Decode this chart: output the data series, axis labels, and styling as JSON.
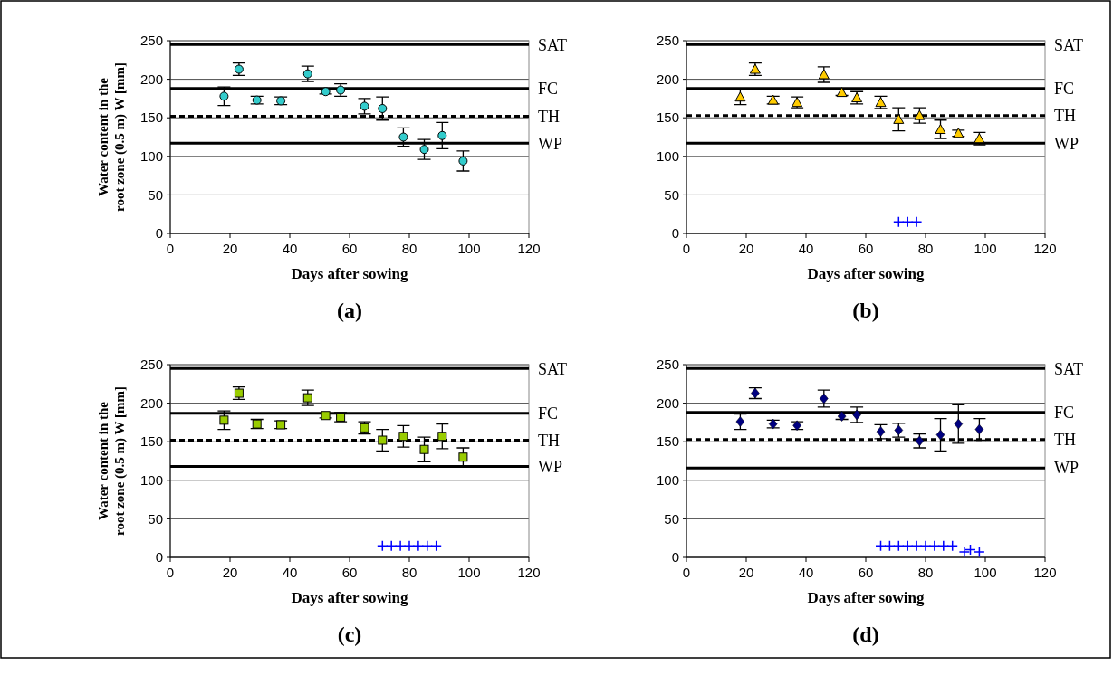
{
  "chart_data": [
    {
      "type": "scatter",
      "title": "(a)",
      "xlabel": "Days after sowing",
      "ylabel": "Water content in the root zone (0.5 m) W [mm]",
      "xlim": [
        0,
        120
      ],
      "xticks": [
        0,
        20,
        40,
        60,
        80,
        100,
        120
      ],
      "ylim": [
        0,
        250
      ],
      "yticks": [
        0,
        50,
        100,
        150,
        200,
        250
      ],
      "grid": "y",
      "ref_lines": [
        {
          "axis": "y",
          "value": 245,
          "label": "SAT",
          "line_style": "solid"
        },
        {
          "axis": "y",
          "value": 188,
          "label": "FC",
          "line_style": "solid"
        },
        {
          "axis": "y",
          "value": 152,
          "label": "TH",
          "line_style": "dashed"
        },
        {
          "axis": "y",
          "value": 117,
          "label": "WP",
          "line_style": "solid"
        }
      ],
      "series": [
        {
          "color": "#33cccc",
          "marker": "circle",
          "x": [
            18,
            23,
            29,
            37,
            46,
            52,
            57,
            65,
            71,
            78,
            85,
            91,
            98
          ],
          "values": [
            178,
            213,
            173,
            172,
            207,
            184,
            186,
            165,
            162,
            125,
            109,
            127,
            94
          ],
          "errors": [
            12,
            8,
            5,
            5,
            10,
            3,
            8,
            10,
            15,
            12,
            13,
            17,
            13
          ]
        }
      ]
    },
    {
      "type": "scatter",
      "title": "(b)",
      "xlabel": "Days after sowing",
      "xlim": [
        0,
        120
      ],
      "xticks": [
        0,
        20,
        40,
        60,
        80,
        100,
        120
      ],
      "ylim": [
        0,
        250
      ],
      "yticks": [
        0,
        50,
        100,
        150,
        200,
        250
      ],
      "grid": "y",
      "ref_lines": [
        {
          "axis": "y",
          "value": 245,
          "label": "SAT",
          "line_style": "solid"
        },
        {
          "axis": "y",
          "value": 188,
          "label": "FC",
          "line_style": "solid"
        },
        {
          "axis": "y",
          "value": 153,
          "label": "TH",
          "line_style": "dashed"
        },
        {
          "axis": "y",
          "value": 117,
          "label": "WP",
          "line_style": "solid"
        }
      ],
      "series": [
        {
          "color": "#ffcc00",
          "marker": "triangle",
          "x": [
            18,
            23,
            29,
            37,
            46,
            52,
            57,
            65,
            71,
            78,
            85,
            91,
            98
          ],
          "values": [
            177,
            213,
            173,
            170,
            206,
            183,
            176,
            170,
            148,
            153,
            135,
            130,
            123
          ],
          "errors": [
            10,
            8,
            5,
            7,
            10,
            4,
            8,
            8,
            15,
            10,
            12,
            4,
            8
          ]
        },
        {
          "color": "#0000ff",
          "marker": "cross",
          "x": [
            71,
            74,
            77
          ],
          "values": [
            15,
            15,
            15
          ]
        }
      ]
    },
    {
      "type": "scatter",
      "title": "(c)",
      "xlabel": "Days after sowing",
      "ylabel": "Water content in the root zone (0.5 m) W [mm]",
      "xlim": [
        0,
        120
      ],
      "xticks": [
        0,
        20,
        40,
        60,
        80,
        100,
        120
      ],
      "ylim": [
        0,
        250
      ],
      "yticks": [
        0,
        50,
        100,
        150,
        200,
        250
      ],
      "grid": "y",
      "ref_lines": [
        {
          "axis": "y",
          "value": 245,
          "label": "SAT",
          "line_style": "solid"
        },
        {
          "axis": "y",
          "value": 187,
          "label": "FC",
          "line_style": "solid"
        },
        {
          "axis": "y",
          "value": 152,
          "label": "TH",
          "line_style": "dashed"
        },
        {
          "axis": "y",
          "value": 118,
          "label": "WP",
          "line_style": "solid"
        }
      ],
      "series": [
        {
          "color": "#99cc00",
          "marker": "square",
          "x": [
            18,
            23,
            29,
            37,
            46,
            52,
            57,
            65,
            71,
            78,
            85,
            91,
            98
          ],
          "values": [
            178,
            213,
            173,
            172,
            207,
            184,
            182,
            168,
            152,
            157,
            140,
            157,
            130
          ],
          "errors": [
            12,
            8,
            6,
            5,
            10,
            3,
            6,
            8,
            14,
            14,
            16,
            16,
            12
          ]
        },
        {
          "color": "#0000ff",
          "marker": "cross",
          "x": [
            71,
            74,
            77,
            80,
            83,
            86,
            89
          ],
          "values": [
            15,
            15,
            15,
            15,
            15,
            15,
            15
          ]
        }
      ]
    },
    {
      "type": "scatter",
      "title": "(d)",
      "xlabel": "Days after sowing",
      "xlim": [
        0,
        120
      ],
      "xticks": [
        0,
        20,
        40,
        60,
        80,
        100,
        120
      ],
      "ylim": [
        0,
        250
      ],
      "yticks": [
        0,
        50,
        100,
        150,
        200,
        250
      ],
      "grid": "y",
      "ref_lines": [
        {
          "axis": "y",
          "value": 245,
          "label": "SAT",
          "line_style": "solid"
        },
        {
          "axis": "y",
          "value": 188,
          "label": "FC",
          "line_style": "solid"
        },
        {
          "axis": "y",
          "value": 153,
          "label": "TH",
          "line_style": "dashed"
        },
        {
          "axis": "y",
          "value": 116,
          "label": "WP",
          "line_style": "solid"
        }
      ],
      "series": [
        {
          "color": "#000080",
          "marker": "diamond",
          "x": [
            18,
            23,
            29,
            37,
            46,
            52,
            57,
            65,
            71,
            78,
            85,
            91,
            98
          ],
          "values": [
            176,
            213,
            173,
            171,
            206,
            183,
            185,
            163,
            165,
            151,
            159,
            173,
            166
          ],
          "errors": [
            10,
            7,
            5,
            5,
            11,
            4,
            10,
            9,
            9,
            9,
            21,
            25,
            14
          ]
        },
        {
          "color": "#0000ff",
          "marker": "cross",
          "x": [
            65,
            68,
            71,
            74,
            77,
            80,
            83,
            86,
            89,
            93,
            95,
            98
          ],
          "values": [
            15,
            15,
            15,
            15,
            15,
            15,
            15,
            15,
            15,
            7,
            10,
            7
          ]
        }
      ]
    }
  ]
}
